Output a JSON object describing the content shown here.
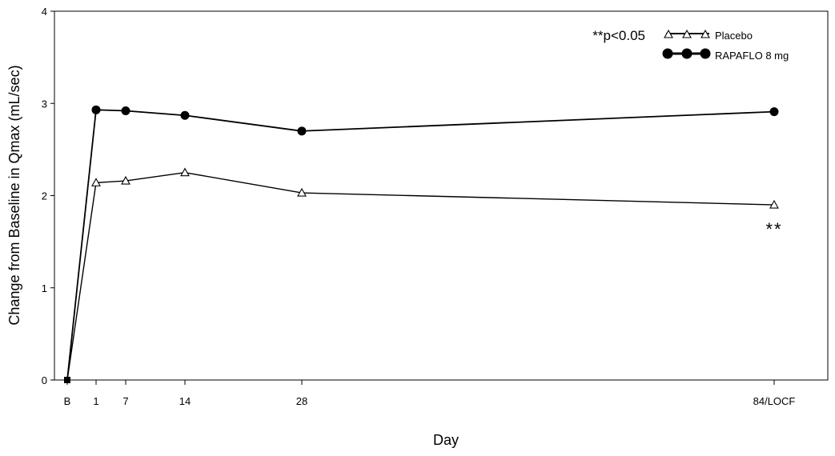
{
  "chart_data": {
    "type": "line",
    "xlabel": "Day",
    "ylabel": "Change from Baseline in Qmax (mL/sec)",
    "ylim": [
      0,
      4
    ],
    "yticks": [
      0,
      1,
      2,
      3,
      4
    ],
    "x": [
      "B",
      "1",
      "7",
      "14",
      "28",
      "84/LOCF"
    ],
    "series": [
      {
        "name": "Placebo",
        "marker": "open-triangle",
        "values": [
          0,
          2.14,
          2.16,
          2.25,
          2.03,
          1.9
        ]
      },
      {
        "name": "RAPAFLO 8 mg",
        "marker": "filled-circle",
        "values": [
          0,
          2.93,
          2.92,
          2.87,
          2.7,
          2.91
        ]
      }
    ],
    "annotation": "**p<0.05",
    "significance_marker": {
      "x": "84/LOCF",
      "text": "**"
    },
    "legend": {
      "position": "top-right"
    },
    "grid": false
  }
}
